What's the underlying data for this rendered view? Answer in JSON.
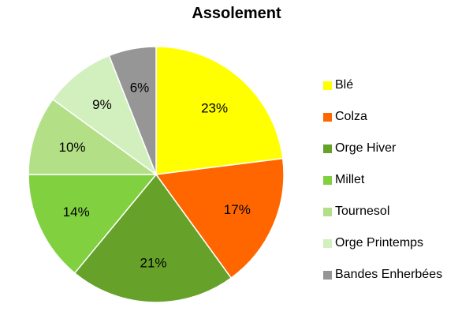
{
  "chart_data": {
    "type": "pie",
    "title": "Assolement",
    "legend_position": "right",
    "slices": [
      {
        "name": "Blé",
        "value": 23,
        "label": "23%",
        "color": "#FFFF00"
      },
      {
        "name": "Colza",
        "value": 17,
        "label": "17%",
        "color": "#FF6600"
      },
      {
        "name": "Orge Hiver",
        "value": 21,
        "label": "21%",
        "color": "#66A229"
      },
      {
        "name": "Millet",
        "value": 14,
        "label": "14%",
        "color": "#80D040"
      },
      {
        "name": "Tournesol",
        "value": 10,
        "label": "10%",
        "color": "#B3E087"
      },
      {
        "name": "Orge Printemps",
        "value": 9,
        "label": "9%",
        "color": "#D2EFBE"
      },
      {
        "name": "Bandes Enherbées",
        "value": 6,
        "label": "6%",
        "color": "#969696"
      }
    ]
  }
}
